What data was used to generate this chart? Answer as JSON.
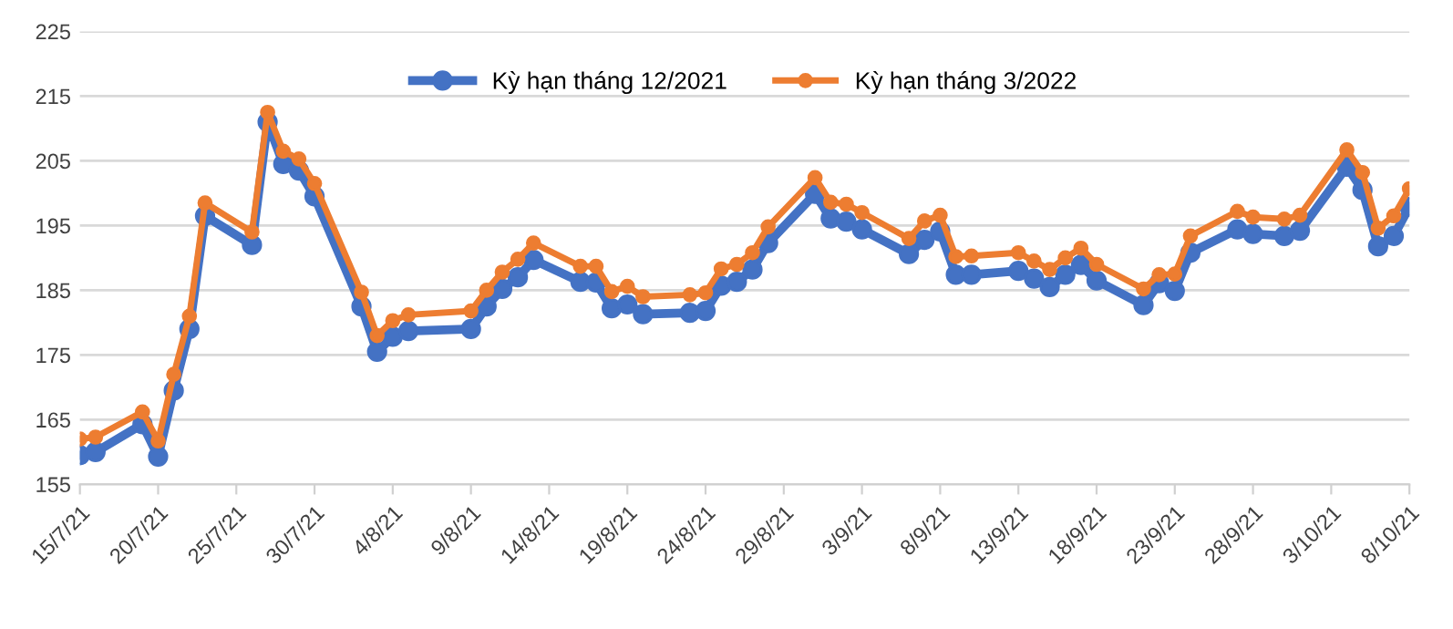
{
  "chart_data": {
    "type": "line",
    "x": [
      "2021-07-15",
      "2021-07-16",
      "2021-07-19",
      "2021-07-20",
      "2021-07-21",
      "2021-07-22",
      "2021-07-23",
      "2021-07-26",
      "2021-07-27",
      "2021-07-28",
      "2021-07-29",
      "2021-07-30",
      "2021-08-02",
      "2021-08-03",
      "2021-08-04",
      "2021-08-05",
      "2021-08-09",
      "2021-08-10",
      "2021-08-11",
      "2021-08-12",
      "2021-08-13",
      "2021-08-16",
      "2021-08-17",
      "2021-08-18",
      "2021-08-19",
      "2021-08-20",
      "2021-08-23",
      "2021-08-24",
      "2021-08-25",
      "2021-08-26",
      "2021-08-27",
      "2021-08-28",
      "2021-08-31",
      "2021-09-01",
      "2021-09-02",
      "2021-09-03",
      "2021-09-06",
      "2021-09-07",
      "2021-09-08",
      "2021-09-09",
      "2021-09-10",
      "2021-09-13",
      "2021-09-14",
      "2021-09-15",
      "2021-09-16",
      "2021-09-17",
      "2021-09-18",
      "2021-09-21",
      "2021-09-22",
      "2021-09-23",
      "2021-09-24",
      "2021-09-27",
      "2021-09-28",
      "2021-09-30",
      "2021-10-01",
      "2021-10-04",
      "2021-10-05",
      "2021-10-06",
      "2021-10-07",
      "2021-10-08"
    ],
    "series": [
      {
        "name": "Kỳ hạn tháng 12/2021",
        "color": "#4472c4",
        "values": [
          159.5,
          160,
          164.3,
          159.3,
          169.5,
          179,
          196.5,
          192,
          211,
          204.5,
          203.5,
          199.5,
          182.5,
          175.5,
          177.8,
          178.7,
          179,
          182.5,
          185.2,
          187,
          189.7,
          186.3,
          186.2,
          182.2,
          182.8,
          181.3,
          181.5,
          181.8,
          185.7,
          186.3,
          188.2,
          192.3,
          199.9,
          196.1,
          195.6,
          194.4,
          190.6,
          192.8,
          194.1,
          187.4,
          187.4,
          188,
          186.8,
          185.5,
          187.4,
          188.9,
          186.5,
          182.7,
          186.1,
          184.9,
          190.8,
          194.4,
          193.7,
          193.4,
          194.2,
          204.1,
          200.5,
          191.8,
          193.4,
          197.9
        ]
      },
      {
        "name": "Kỳ hạn tháng 3/2022",
        "color": "#ed7d31",
        "values": [
          162,
          162.3,
          166.2,
          161.7,
          172,
          181,
          198.5,
          194,
          212.5,
          206.5,
          205.3,
          201.5,
          184.7,
          178,
          180.3,
          181.2,
          181.8,
          185,
          187.8,
          189.8,
          192.3,
          188.7,
          188.7,
          184.8,
          185.6,
          184,
          184.3,
          184.6,
          188.3,
          189,
          190.8,
          194.8,
          202.4,
          198.6,
          198.3,
          197,
          193,
          195.7,
          196.6,
          190.2,
          190.3,
          190.8,
          189.5,
          188.2,
          190,
          191.5,
          189,
          185.2,
          187.4,
          187.5,
          193.4,
          197.2,
          196.3,
          196,
          196.6,
          206.7,
          203.2,
          194.6,
          196.5,
          200.7
        ]
      }
    ],
    "xlim": [
      "2021-07-15",
      "2021-10-08"
    ],
    "xticks": [
      {
        "value": "2021-07-15",
        "label": "15/7/21"
      },
      {
        "value": "2021-07-20",
        "label": "20/7/21"
      },
      {
        "value": "2021-07-25",
        "label": "25/7/21"
      },
      {
        "value": "2021-07-30",
        "label": "30/7/21"
      },
      {
        "value": "2021-08-04",
        "label": "4/8/21"
      },
      {
        "value": "2021-08-09",
        "label": "9/8/21"
      },
      {
        "value": "2021-08-14",
        "label": "14/8/21"
      },
      {
        "value": "2021-08-19",
        "label": "19/8/21"
      },
      {
        "value": "2021-08-24",
        "label": "24/8/21"
      },
      {
        "value": "2021-08-29",
        "label": "29/8/21"
      },
      {
        "value": "2021-09-03",
        "label": "3/9/21"
      },
      {
        "value": "2021-09-08",
        "label": "8/9/21"
      },
      {
        "value": "2021-09-13",
        "label": "13/9/21"
      },
      {
        "value": "2021-09-18",
        "label": "18/9/21"
      },
      {
        "value": "2021-09-23",
        "label": "23/9/21"
      },
      {
        "value": "2021-09-28",
        "label": "28/9/21"
      },
      {
        "value": "2021-10-03",
        "label": "3/10/21"
      },
      {
        "value": "2021-10-08",
        "label": "8/10/21"
      }
    ],
    "ylim": [
      155,
      225
    ],
    "yticks": [
      155,
      165,
      175,
      185,
      195,
      205,
      215,
      225
    ],
    "grid": "y",
    "legend": "top",
    "marker": "circle",
    "line_style": "solid"
  }
}
